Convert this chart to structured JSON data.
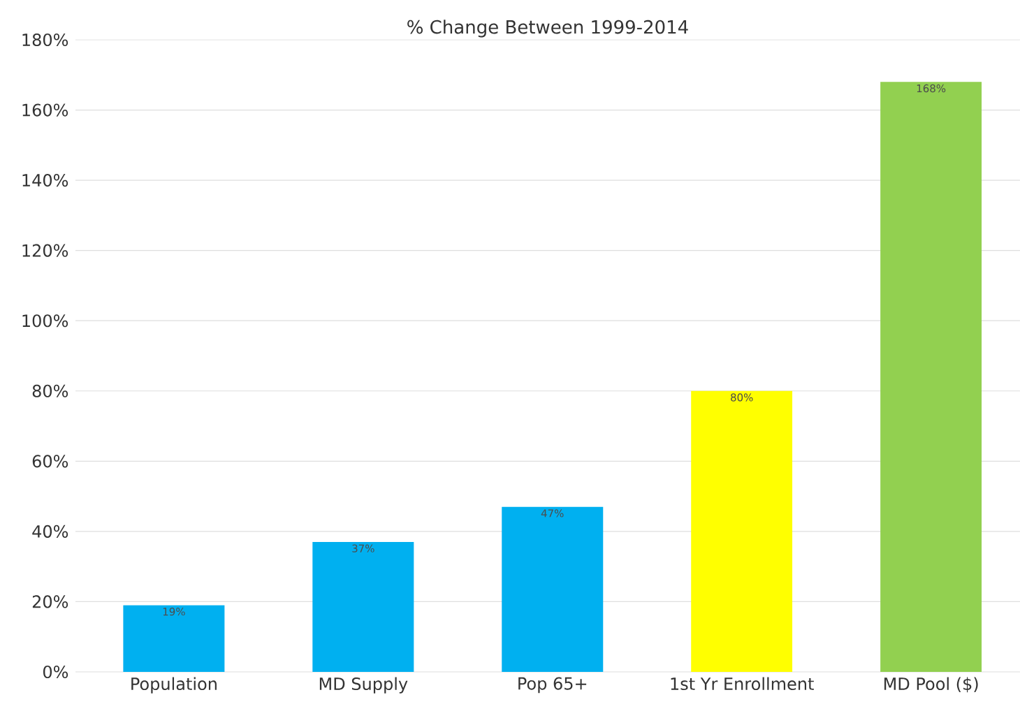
{
  "chart_data": {
    "type": "bar",
    "title": "% Change Between 1999-2014",
    "categories": [
      "Population",
      "MD Supply",
      "Pop 65+",
      "1st Yr Enrollment",
      "MD Pool ($)"
    ],
    "values": [
      19,
      37,
      47,
      80,
      168
    ],
    "colors": [
      "#00b0f0",
      "#00b0f0",
      "#00b0f0",
      "#ffff00",
      "#92d050"
    ],
    "value_labels": [
      "19%",
      "37%",
      "47%",
      "80%",
      "168%"
    ],
    "ylim": [
      0,
      180
    ],
    "yticks": [
      {
        "value": 0,
        "label": "0%"
      },
      {
        "value": 20,
        "label": "20%"
      },
      {
        "value": 40,
        "label": "40%"
      },
      {
        "value": 60,
        "label": "60%"
      },
      {
        "value": 80,
        "label": "80%"
      },
      {
        "value": 100,
        "label": "100%"
      },
      {
        "value": 120,
        "label": "120%"
      },
      {
        "value": 140,
        "label": "140%"
      },
      {
        "value": 160,
        "label": "160%"
      },
      {
        "value": 180,
        "label": "180%"
      }
    ],
    "grid": "y"
  }
}
